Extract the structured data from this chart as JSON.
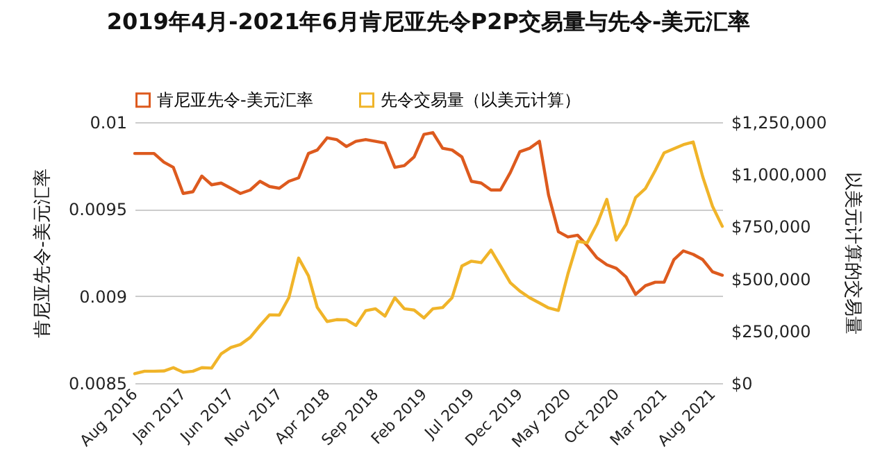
{
  "chart_data": {
    "type": "line",
    "title": "2019年4月-2021年6月肯尼亚先令P2P交易量与先令-美元汇率",
    "ylabel": "肯尼亚先令-美元汇率",
    "y2label": "以美元计算的交易量",
    "x": [
      "2016-08",
      "2016-09",
      "2016-10",
      "2016-11",
      "2016-12",
      "2017-01",
      "2017-02",
      "2017-03",
      "2017-04",
      "2017-05",
      "2017-06",
      "2017-07",
      "2017-08",
      "2017-09",
      "2017-10",
      "2017-11",
      "2017-12",
      "2018-01",
      "2018-02",
      "2018-03",
      "2018-04",
      "2018-05",
      "2018-06",
      "2018-07",
      "2018-08",
      "2018-09",
      "2018-10",
      "2018-11",
      "2018-12",
      "2019-01",
      "2019-02",
      "2019-03",
      "2019-04",
      "2019-05",
      "2019-06",
      "2019-07",
      "2019-08",
      "2019-09",
      "2019-10",
      "2019-11",
      "2019-12",
      "2020-01",
      "2020-02",
      "2020-03",
      "2020-04",
      "2020-05",
      "2020-06",
      "2020-07",
      "2020-08",
      "2020-09",
      "2020-10",
      "2020-11",
      "2020-12",
      "2021-01",
      "2021-02",
      "2021-03",
      "2021-04",
      "2021-05",
      "2021-06",
      "2021-07",
      "2021-08",
      "2021-09"
    ],
    "series": [
      {
        "name": "肯尼亚先令-美元汇率",
        "color": "#dd5a1e",
        "values": [
          0.00982,
          0.00982,
          0.00982,
          0.00977,
          0.00974,
          0.00959,
          0.0096,
          0.00969,
          0.00964,
          0.00965,
          0.00962,
          0.00959,
          0.00961,
          0.00966,
          0.00963,
          0.00962,
          0.00966,
          0.00968,
          0.00982,
          0.00984,
          0.00991,
          0.0099,
          0.00986,
          0.00989,
          0.0099,
          0.00989,
          0.00988,
          0.00974,
          0.00975,
          0.0098,
          0.00993,
          0.00994,
          0.00985,
          0.00984,
          0.0098,
          0.00966,
          0.00965,
          0.00961,
          0.00961,
          0.00971,
          0.00983,
          0.00985,
          0.00989,
          0.00958,
          0.00937,
          0.00934,
          0.00935,
          0.00929,
          0.00922,
          0.00918,
          0.00916,
          0.00911,
          0.00901,
          0.00906,
          0.00908,
          0.00908,
          0.00921,
          0.00926,
          0.00924,
          0.00921,
          0.00914,
          0.00912
        ]
      },
      {
        "name": "先令交易量（以美元计算）",
        "color": "#f0b429",
        "axis": "y2",
        "values": [
          45000,
          57000,
          57000,
          58000,
          74000,
          52000,
          57000,
          74000,
          72000,
          140000,
          171000,
          185000,
          219000,
          276000,
          327000,
          326000,
          409000,
          599000,
          514000,
          362000,
          295000,
          304000,
          303000,
          276000,
          347000,
          356000,
          321000,
          409000,
          356000,
          350000,
          312000,
          356000,
          362000,
          409000,
          561000,
          584000,
          577000,
          637000,
          561000,
          481000,
          441000,
          409000,
          384000,
          360000,
          348000,
          523000,
          679000,
          672000,
          761000,
          880000,
          685000,
          761000,
          889000,
          932000,
          1018000,
          1103000,
          1123000,
          1142000,
          1155000,
          989000,
          847000,
          751000
        ]
      }
    ],
    "xlim": [
      "2016-08",
      "2021-09"
    ],
    "xticks": [
      {
        "value": "2016-08",
        "label": "Aug 2016"
      },
      {
        "value": "2017-01",
        "label": "Jan 2017"
      },
      {
        "value": "2017-06",
        "label": "Jun 2017"
      },
      {
        "value": "2017-11",
        "label": "Nov 2017"
      },
      {
        "value": "2018-04",
        "label": "Apr 2018"
      },
      {
        "value": "2018-09",
        "label": "Sep 2018"
      },
      {
        "value": "2019-02",
        "label": "Feb 2019"
      },
      {
        "value": "2019-07",
        "label": "Jul 2019"
      },
      {
        "value": "2019-12",
        "label": "Dec 2019"
      },
      {
        "value": "2020-05",
        "label": "May 2020"
      },
      {
        "value": "2020-10",
        "label": "Oct 2020"
      },
      {
        "value": "2021-03",
        "label": "Mar 2021"
      },
      {
        "value": "2021-08",
        "label": "Aug 2021"
      }
    ],
    "ylim": [
      0.0085,
      0.01
    ],
    "yticks": [
      0.0085,
      0.009,
      0.0095,
      0.01
    ],
    "y2lim": [
      0,
      1250000
    ],
    "y2ticks": [
      {
        "value": 0,
        "label": "$0"
      },
      {
        "value": 250000,
        "label": "$250,000"
      },
      {
        "value": 500000,
        "label": "$500,000"
      },
      {
        "value": 750000,
        "label": "$750,000"
      },
      {
        "value": 1000000,
        "label": "$1,000,000"
      },
      {
        "value": 1250000,
        "label": "$1,250,000"
      }
    ],
    "grid": "y",
    "legend": "top"
  }
}
